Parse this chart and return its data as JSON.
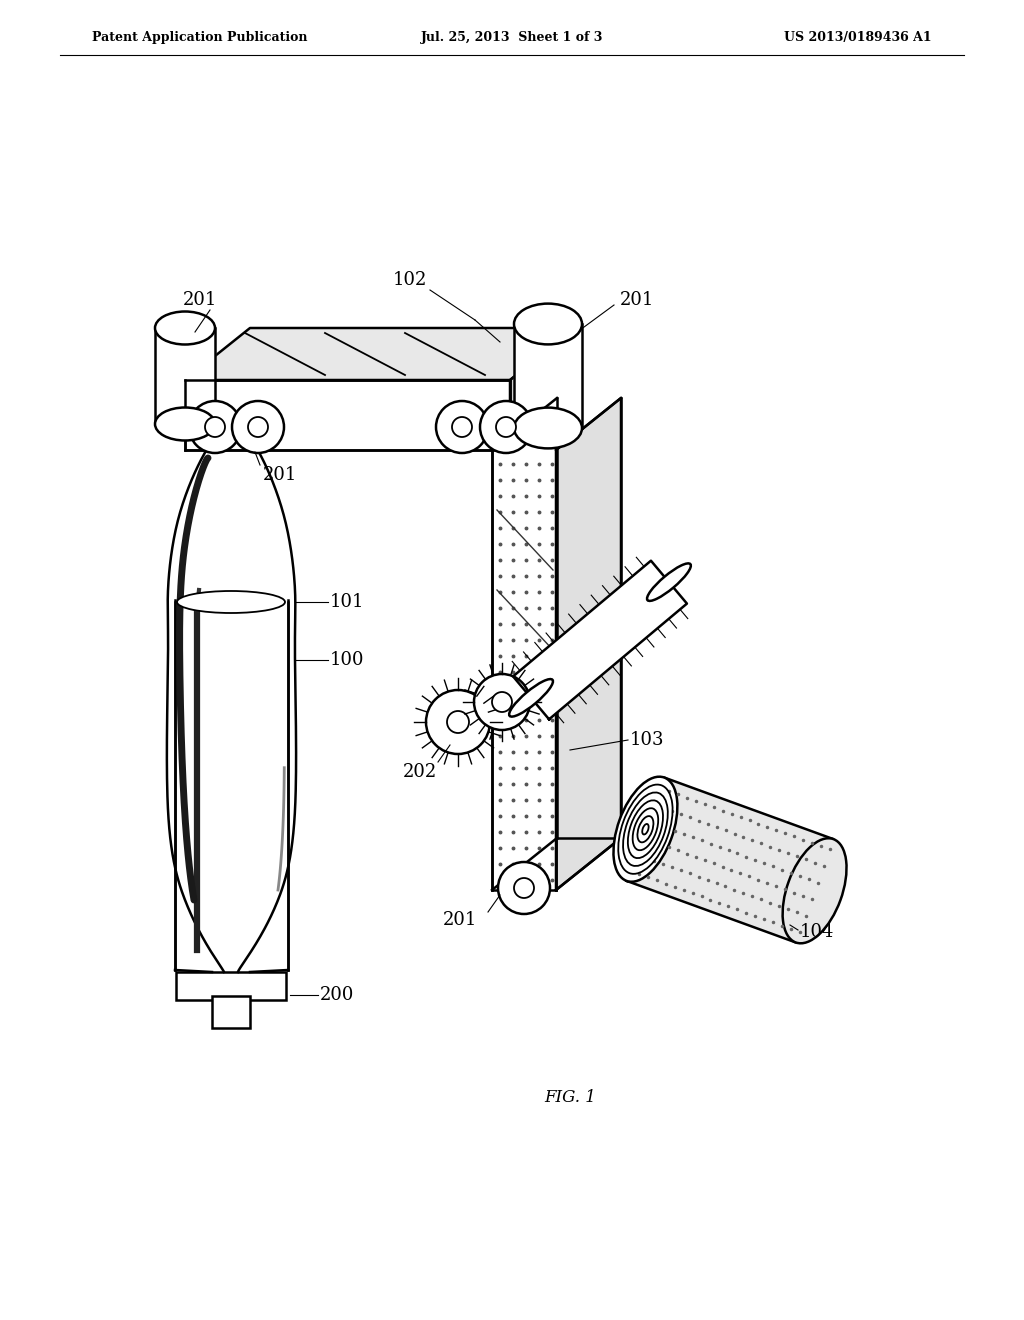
{
  "title_left": "Patent Application Publication",
  "title_mid": "Jul. 25, 2013  Sheet 1 of 3",
  "title_right": "US 2013/0189436 A1",
  "fig_label": "FIG. 1",
  "background_color": "#ffffff",
  "line_color": "#000000"
}
